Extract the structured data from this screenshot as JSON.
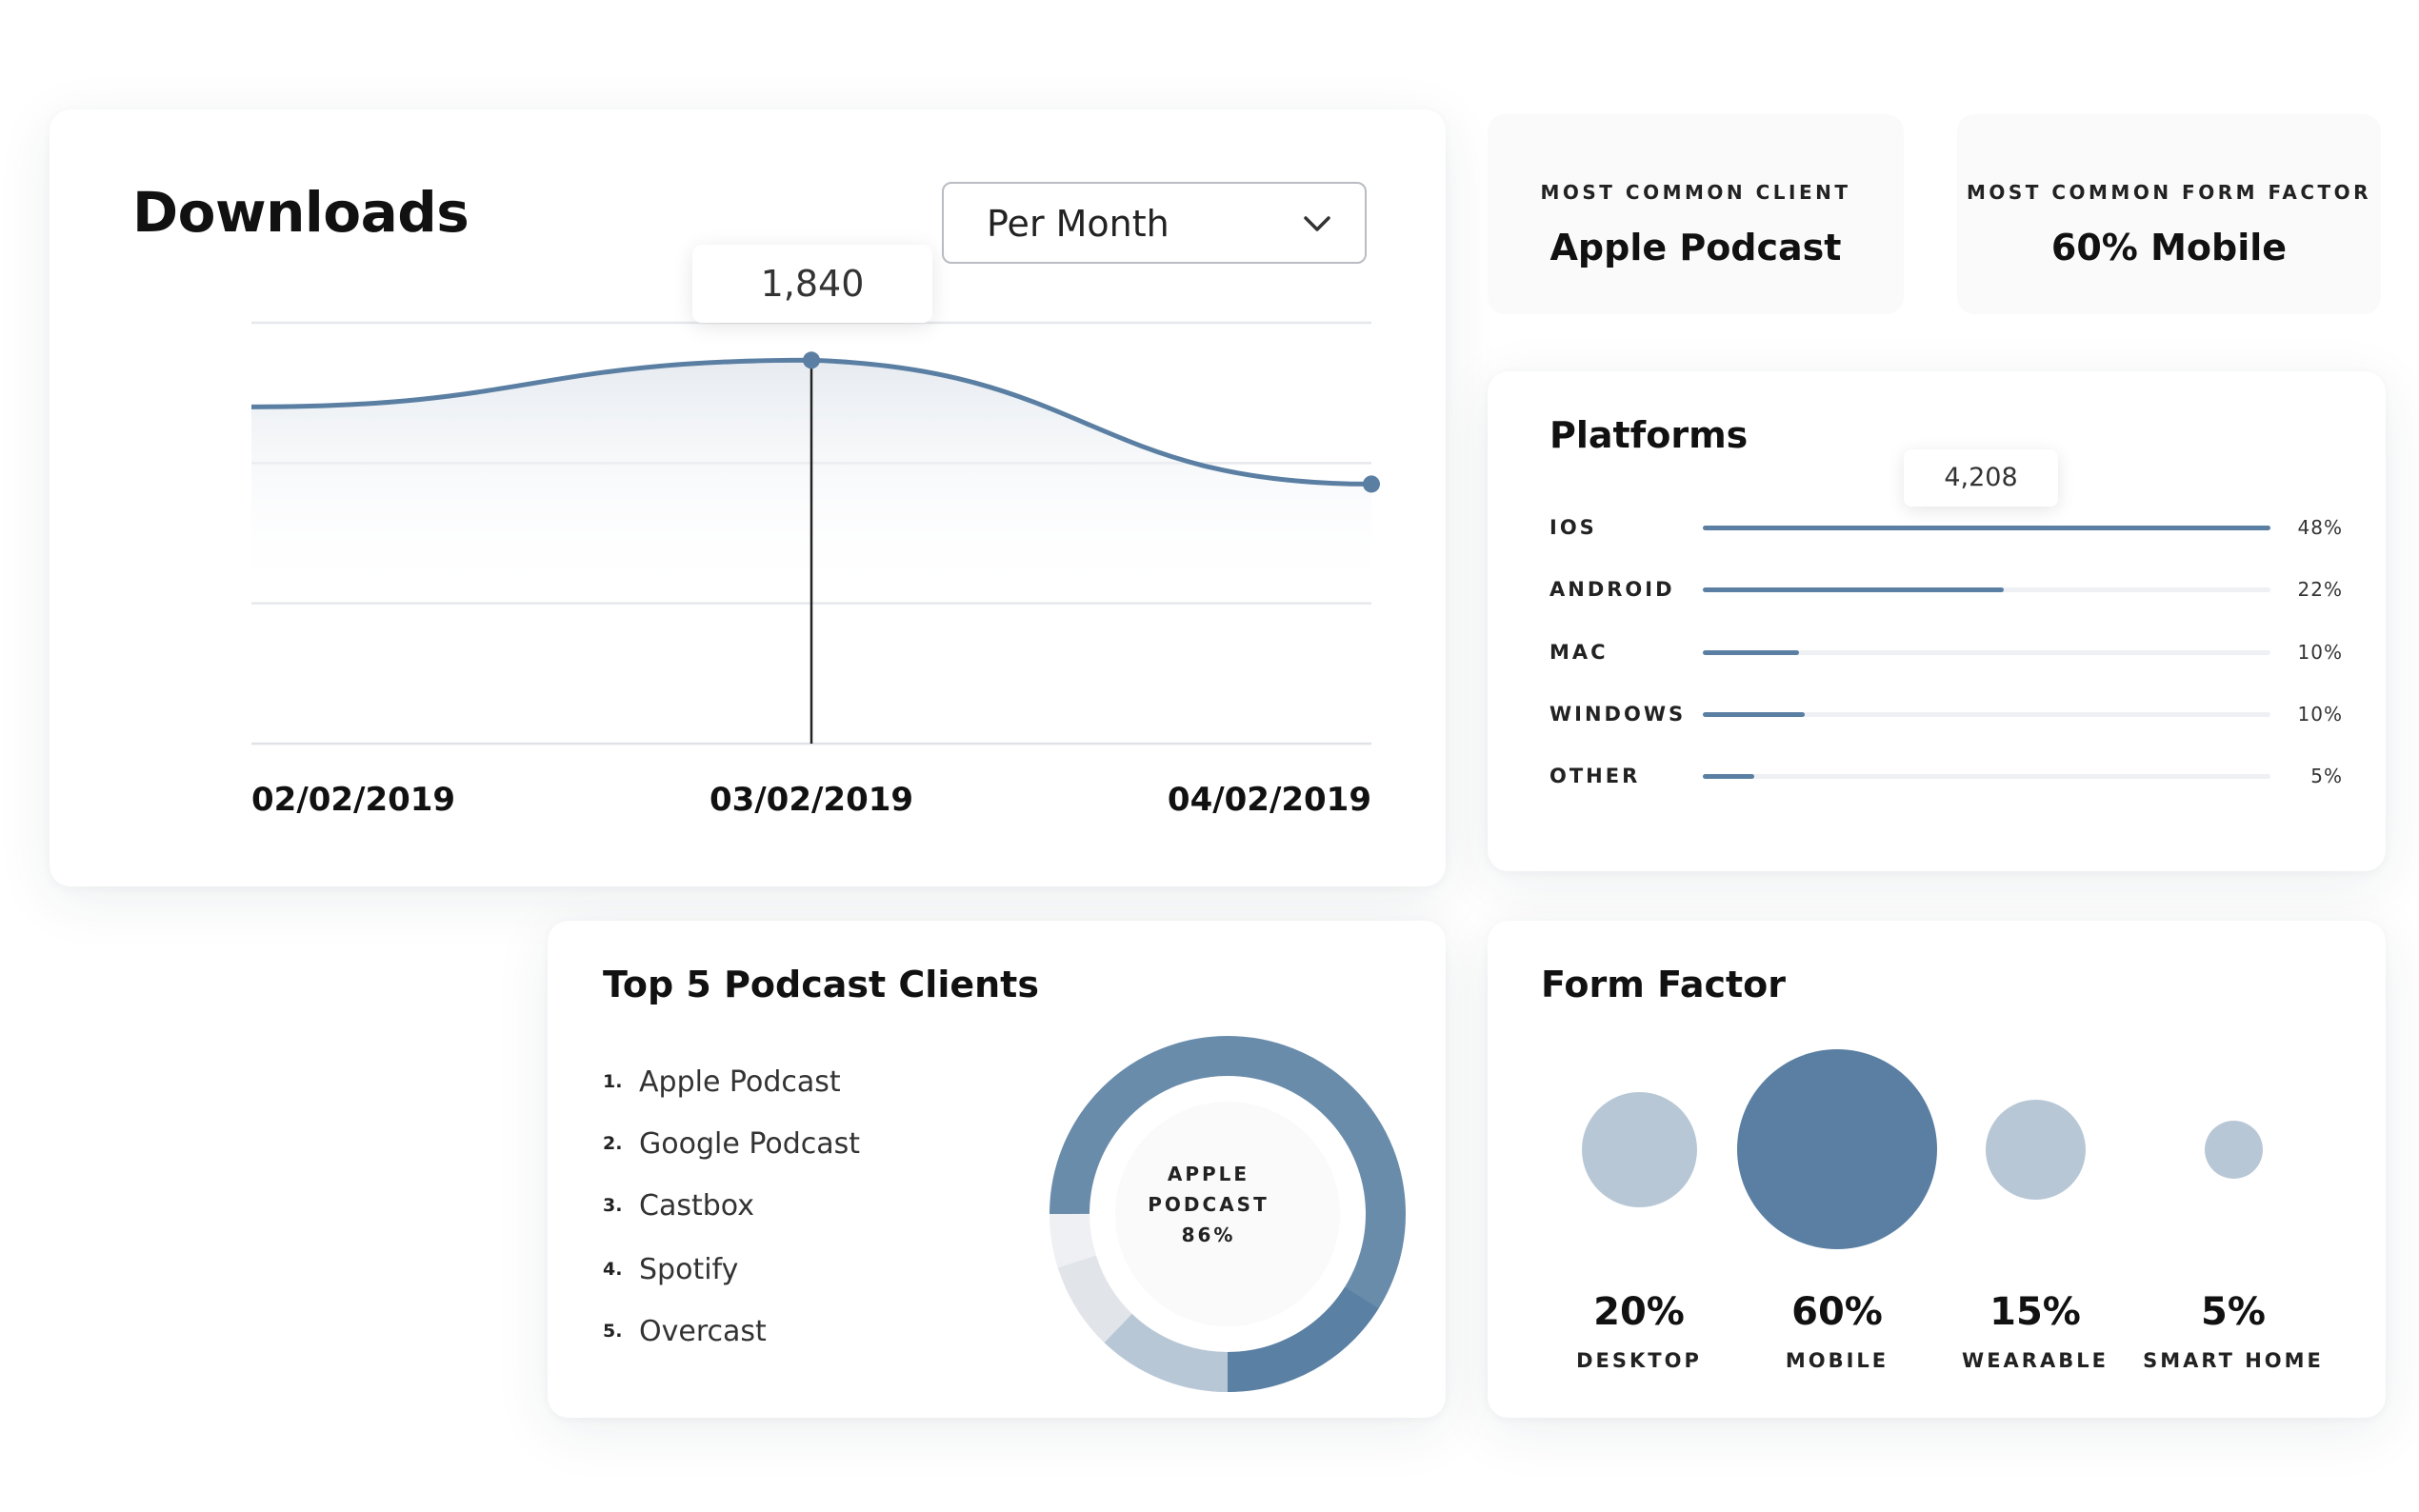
{
  "downloads": {
    "title": "Downloads",
    "period": "Per Month",
    "tooltip": "1,840",
    "x_labels": [
      "02/02/2019",
      "03/02/2019",
      "04/02/2019"
    ]
  },
  "chart_data": {
    "type": "line",
    "x": [
      "02/02/2019",
      "03/02/2019",
      "04/02/2019"
    ],
    "series": [
      {
        "values": [
          1640,
          1840,
          1310
        ]
      }
    ],
    "highlight": {
      "x": "03/02/2019",
      "label": "1,840"
    },
    "grid": true
  },
  "stats": {
    "client": {
      "label": "MOST COMMON CLIENT",
      "value": "Apple Podcast"
    },
    "form_factor": {
      "label": "MOST COMMON FORM FACTOR",
      "value": "60% Mobile"
    }
  },
  "platforms": {
    "title": "Platforms",
    "tooltip": "4,208",
    "items": [
      {
        "name": "IOS",
        "pct": "48%",
        "value": 1.0
      },
      {
        "name": "ANDROID",
        "pct": "22%",
        "value": 0.53
      },
      {
        "name": "MAC",
        "pct": "10%",
        "value": 0.17
      },
      {
        "name": "WINDOWS",
        "pct": "10%",
        "value": 0.18
      },
      {
        "name": "OTHER",
        "pct": "5%",
        "value": 0.09
      }
    ]
  },
  "clients": {
    "title": "Top 5 Podcast Clients",
    "items": [
      {
        "num": "1.",
        "name": "Apple Podcast"
      },
      {
        "num": "2.",
        "name": "Google Podcast"
      },
      {
        "num": "3.",
        "name": "Castbox"
      },
      {
        "num": "4.",
        "name": "Spotify"
      },
      {
        "num": "5.",
        "name": "Overcast"
      }
    ],
    "center": {
      "line1": "APPLE",
      "line2": "PODCAST",
      "line3": "86%"
    }
  },
  "form_factor": {
    "title": "Form Factor",
    "items": [
      {
        "pct": "20%",
        "label": "DESKTOP",
        "value": 0.2
      },
      {
        "pct": "60%",
        "label": "MOBILE",
        "value": 0.6
      },
      {
        "pct": "15%",
        "label": "WEARABLE",
        "value": 0.15
      },
      {
        "pct": "5%",
        "label": "SMART HOME",
        "value": 0.05
      }
    ]
  },
  "colors": {
    "accent": "#5a7fa3",
    "light_accent": "#b8c7d6",
    "grid": "#e6e8eb"
  }
}
